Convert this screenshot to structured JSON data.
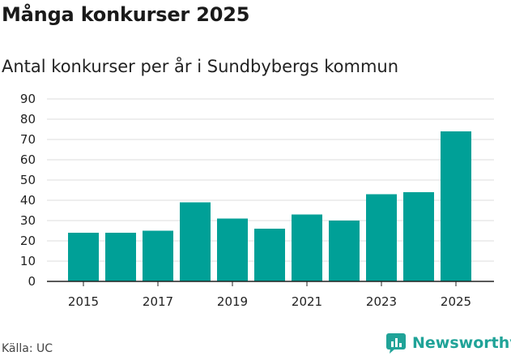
{
  "title": "Många konkurser 2025",
  "subtitle": "Antal konkurser per år i Sundbybergs kommun",
  "source": "Källa: UC",
  "brand": {
    "name": "Newsworthy",
    "icon": "newsworthy-logo-icon",
    "color": "#20a398"
  },
  "chart_data": {
    "type": "bar",
    "title": "Många konkurser 2025",
    "subtitle": "Antal konkurser per år i Sundbybergs kommun",
    "xlabel": "",
    "ylabel": "",
    "categories": [
      "2015",
      "2016",
      "2017",
      "2018",
      "2019",
      "2020",
      "2021",
      "2022",
      "2023",
      "2024",
      "2025"
    ],
    "values": [
      24,
      24,
      25,
      39,
      31,
      26,
      33,
      30,
      43,
      44,
      74
    ],
    "x_tick_labels": [
      "2015",
      "2017",
      "2019",
      "2021",
      "2023",
      "2025"
    ],
    "y_ticks": [
      0,
      10,
      20,
      30,
      40,
      50,
      60,
      70,
      80,
      90
    ],
    "ylim": [
      0,
      90
    ],
    "grid": true,
    "bar_color": "#00a097",
    "grid_color": "#dddddd",
    "axis_color": "#222222"
  }
}
